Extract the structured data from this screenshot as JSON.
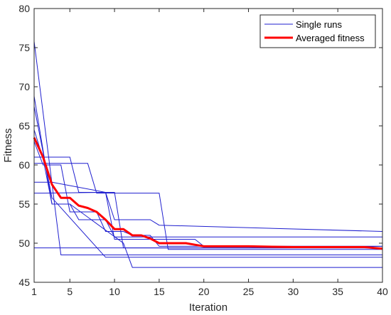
{
  "chart_data": {
    "type": "line",
    "title": "",
    "xlabel": "Iteration",
    "ylabel": "Fitness",
    "xlim": [
      1,
      40
    ],
    "ylim": [
      45,
      80
    ],
    "xticks": [
      1,
      5,
      10,
      15,
      20,
      25,
      30,
      35,
      40
    ],
    "yticks": [
      45,
      50,
      55,
      60,
      65,
      70,
      75,
      80
    ],
    "grid": false,
    "legend": {
      "position": "top-right",
      "entries": [
        {
          "label": "Single runs",
          "color": "#1f1fcf"
        },
        {
          "label": "Averaged fitness",
          "color": "#ff0000"
        }
      ]
    },
    "series": [
      {
        "name": "Single runs",
        "color": "#1f1fcf",
        "runs": [
          {
            "x": [
              1,
              40
            ],
            "y": [
              49.4,
              49.4
            ]
          },
          {
            "x": [
              1,
              4,
              20,
              40
            ],
            "y": [
              75.8,
              48.5,
              48.5,
              48.5
            ]
          },
          {
            "x": [
              1,
              3,
              5,
              11,
              12,
              40
            ],
            "y": [
              68.8,
              55.0,
              55.0,
              50.0,
              46.9,
              46.9
            ]
          },
          {
            "x": [
              1,
              3,
              9,
              40
            ],
            "y": [
              67.5,
              55.8,
              48.2,
              48.2
            ]
          },
          {
            "x": [
              1,
              2,
              3,
              5,
              6,
              9,
              10,
              40
            ],
            "y": [
              64.5,
              60.8,
              55.0,
              55.0,
              53.0,
              53.0,
              50.8,
              50.8
            ]
          },
          {
            "x": [
              1,
              5,
              6,
              10,
              11,
              40
            ],
            "y": [
              61.0,
              61.0,
              56.5,
              56.5,
              49.4,
              49.4
            ]
          },
          {
            "x": [
              1,
              7,
              8,
              15,
              16,
              40
            ],
            "y": [
              60.2,
              60.2,
              56.4,
              56.4,
              49.2,
              49.2
            ]
          },
          {
            "x": [
              1,
              3,
              9,
              10,
              19,
              20,
              40
            ],
            "y": [
              57.8,
              57.8,
              56.5,
              50.5,
              50.5,
              49.6,
              49.6
            ]
          },
          {
            "x": [
              1,
              2,
              9,
              10,
              14,
              15,
              40
            ],
            "y": [
              56.4,
              56.4,
              56.5,
              53.0,
              53.0,
              52.3,
              51.5
            ]
          },
          {
            "x": [
              1,
              2,
              4,
              5,
              8,
              9,
              11,
              12,
              14,
              15,
              40
            ],
            "y": [
              63.0,
              60.0,
              60.0,
              54.0,
              54.0,
              51.5,
              51.5,
              51.0,
              51.0,
              49.6,
              49.6
            ]
          }
        ]
      },
      {
        "name": "Averaged fitness",
        "color": "#ff0000",
        "x": [
          1,
          2,
          3,
          4,
          5,
          6,
          7,
          8,
          9,
          10,
          11,
          12,
          13,
          14,
          15,
          16,
          17,
          18,
          19,
          20,
          25,
          30,
          35,
          38,
          40
        ],
        "y": [
          63.5,
          61.0,
          57.5,
          55.8,
          55.8,
          54.8,
          54.5,
          54.0,
          53.0,
          51.8,
          51.8,
          51.0,
          51.0,
          50.6,
          50.0,
          50.0,
          50.0,
          50.0,
          49.8,
          49.6,
          49.6,
          49.5,
          49.5,
          49.5,
          49.3
        ]
      }
    ]
  }
}
